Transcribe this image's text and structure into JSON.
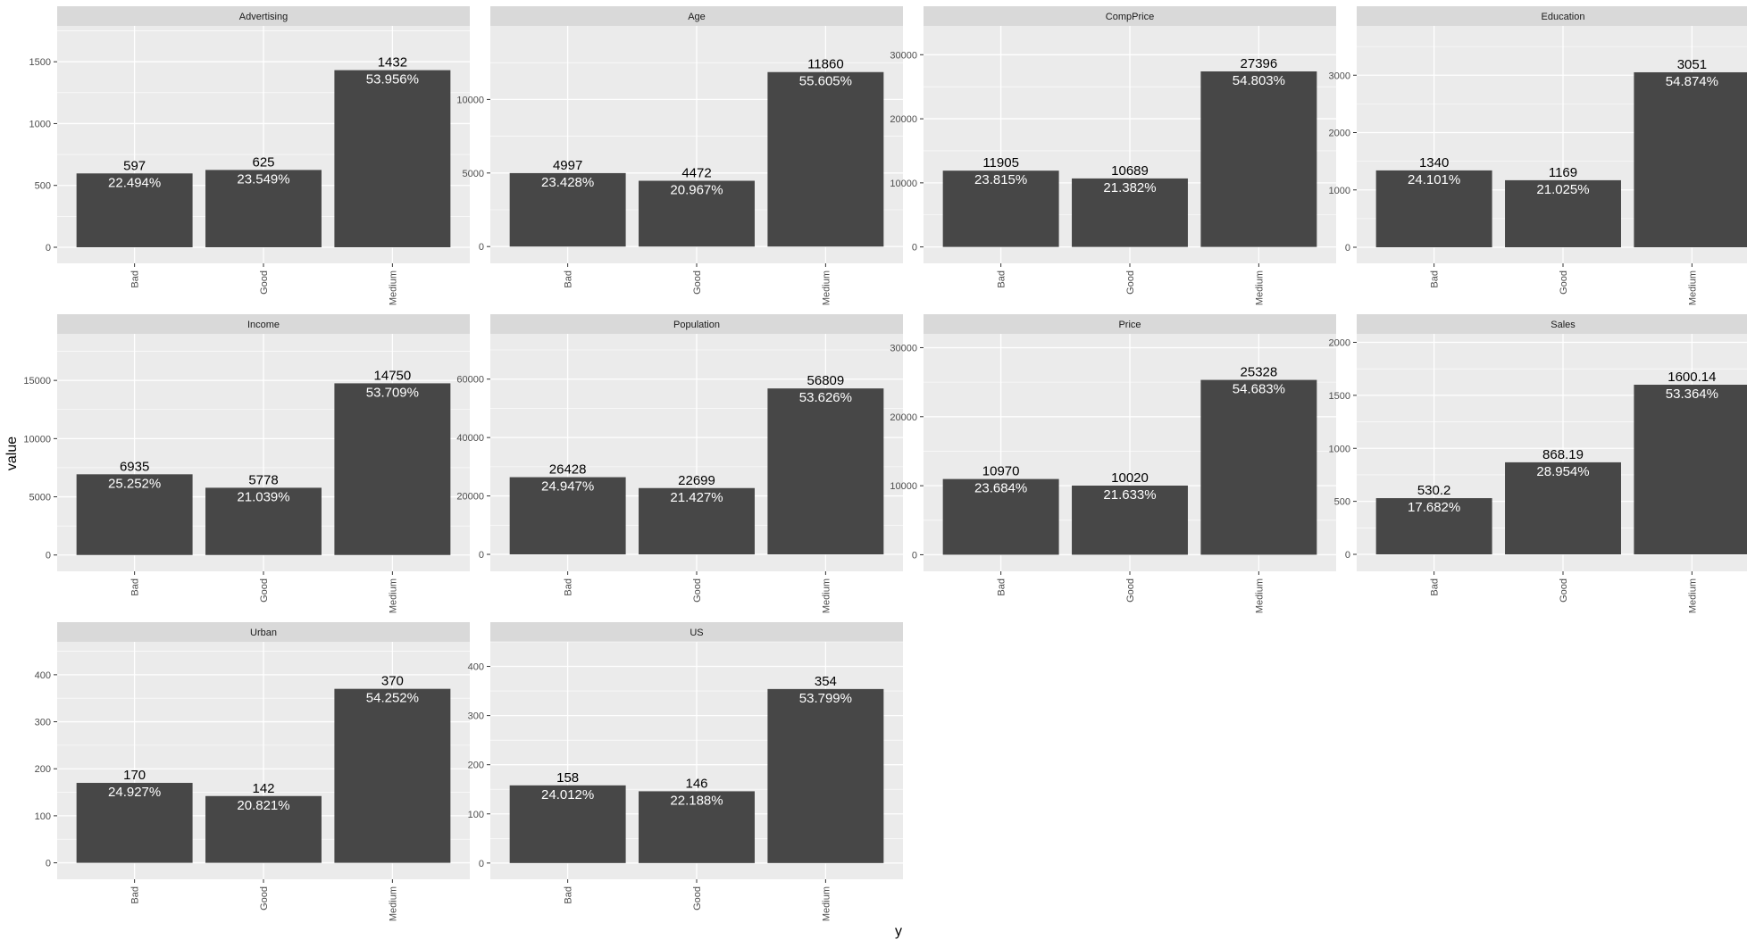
{
  "chart_data": {
    "type": "bar",
    "xlabel": "y",
    "ylabel": "value",
    "categories": [
      "Bad",
      "Good",
      "Medium"
    ],
    "facets": [
      {
        "title": "Advertising",
        "values": [
          597,
          625,
          1432
        ],
        "value_labels": [
          "597",
          "625",
          "1432"
        ],
        "pct_labels": [
          "22.494%",
          "23.549%",
          "53.956%"
        ],
        "ylim": [
          -130,
          1790
        ],
        "ticks": [
          0,
          500,
          1000,
          1500
        ]
      },
      {
        "title": "Age",
        "values": [
          4997,
          4472,
          11860
        ],
        "value_labels": [
          "4997",
          "4472",
          "11860"
        ],
        "pct_labels": [
          "23.428%",
          "20.967%",
          "55.605%"
        ],
        "ylim": [
          -1140,
          15000
        ],
        "ticks": [
          0,
          5000,
          10000
        ]
      },
      {
        "title": "CompPrice",
        "values": [
          11905,
          10689,
          27396
        ],
        "value_labels": [
          "11905",
          "10689",
          "27396"
        ],
        "pct_labels": [
          "23.815%",
          "21.382%",
          "54.803%"
        ],
        "ylim": [
          -2560,
          34500
        ],
        "ticks": [
          0,
          10000,
          20000,
          30000
        ]
      },
      {
        "title": "Education",
        "values": [
          1340,
          1169,
          3051
        ],
        "value_labels": [
          "1340",
          "1169",
          "3051"
        ],
        "pct_labels": [
          "24.101%",
          "21.025%",
          "54.874%"
        ],
        "ylim": [
          -280,
          3860
        ],
        "ticks": [
          0,
          1000,
          2000,
          3000
        ]
      },
      {
        "title": "Income",
        "values": [
          6935,
          5778,
          14750
        ],
        "value_labels": [
          "6935",
          "5778",
          "14750"
        ],
        "pct_labels": [
          "25.252%",
          "21.039%",
          "53.709%"
        ],
        "ylim": [
          -1400,
          19000
        ],
        "ticks": [
          0,
          5000,
          10000,
          15000
        ]
      },
      {
        "title": "Population",
        "values": [
          26428,
          22699,
          56809
        ],
        "value_labels": [
          "26428",
          "22699",
          "56809"
        ],
        "pct_labels": [
          "24.947%",
          "21.427%",
          "53.626%"
        ],
        "ylim": [
          -5800,
          75500
        ],
        "ticks": [
          0,
          20000,
          40000,
          60000
        ]
      },
      {
        "title": "Price",
        "values": [
          10970,
          10020,
          25328
        ],
        "value_labels": [
          "10970",
          "10020",
          "25328"
        ],
        "pct_labels": [
          "23.684%",
          "21.633%",
          "54.683%"
        ],
        "ylim": [
          -2400,
          32000
        ],
        "ticks": [
          0,
          10000,
          20000,
          30000
        ]
      },
      {
        "title": "Sales",
        "values": [
          530.2,
          868.19,
          1600.14
        ],
        "value_labels": [
          "530.2",
          "868.19",
          "1600.14"
        ],
        "pct_labels": [
          "17.682%",
          "28.954%",
          "53.364%"
        ],
        "ylim": [
          -160,
          2080
        ],
        "ticks": [
          0,
          500,
          1000,
          1500,
          2000
        ]
      },
      {
        "title": "Urban",
        "values": [
          170,
          142,
          370
        ],
        "value_labels": [
          "170",
          "142",
          "370"
        ],
        "pct_labels": [
          "24.927%",
          "20.821%",
          "54.252%"
        ],
        "ylim": [
          -35,
          470
        ],
        "ticks": [
          0,
          100,
          200,
          300,
          400
        ]
      },
      {
        "title": "US",
        "values": [
          158,
          146,
          354
        ],
        "value_labels": [
          "158",
          "146",
          "354"
        ],
        "pct_labels": [
          "24.012%",
          "22.188%",
          "53.799%"
        ],
        "ylim": [
          -33,
          450
        ],
        "ticks": [
          0,
          100,
          200,
          300,
          400
        ]
      }
    ],
    "grid": true,
    "legend": "none",
    "colors": {
      "panel": "#ebebeb",
      "strip": "#d9d9d9",
      "bar": "#474747",
      "grid": "#ffffff",
      "text": "#000000",
      "axis_text": "#4d4d4d",
      "pct_text": "#ffffff"
    }
  }
}
